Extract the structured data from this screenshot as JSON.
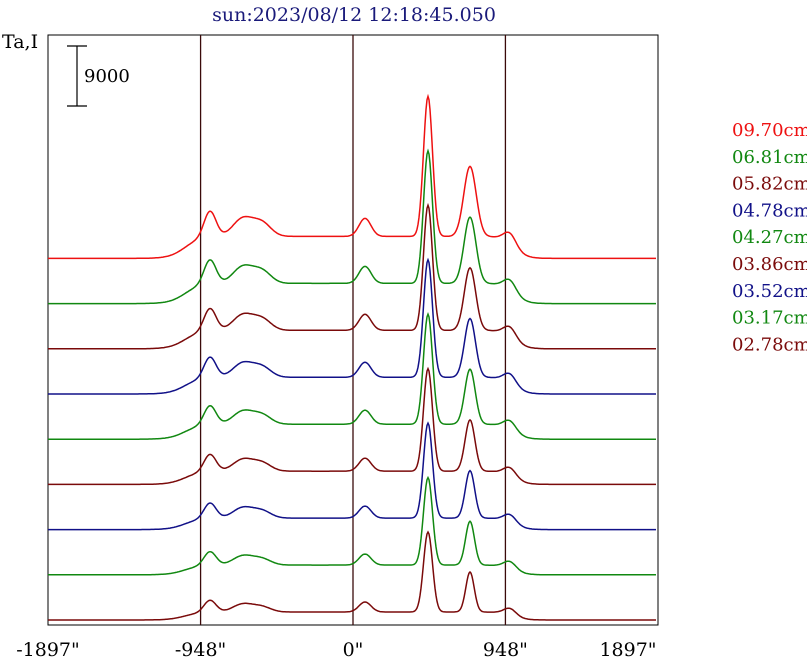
{
  "chart_data": {
    "type": "line",
    "title": "sun:2023/08/12 12:18:45.050",
    "ylabel": "Ta,I",
    "xlim": [
      -1897,
      1897
    ],
    "x_ticks": [
      "-1897\"",
      "-948\"",
      "0\"",
      "948\"",
      "1897\""
    ],
    "x_tick_values": [
      -1897,
      -948,
      0,
      948,
      1897
    ],
    "vertical_lines": [
      -948,
      0,
      948
    ],
    "scale_bar_label": "9000",
    "grid": false,
    "legend_position": "right",
    "series": [
      {
        "name": "09.70cm",
        "color": "#ee1111",
        "rank": 8
      },
      {
        "name": "06.81cm",
        "color": "#118811",
        "rank": 7
      },
      {
        "name": "05.82cm",
        "color": "#7a0a0a",
        "rank": 6
      },
      {
        "name": "04.78cm",
        "color": "#111188",
        "rank": 5
      },
      {
        "name": "04.27cm",
        "color": "#118811",
        "rank": 4
      },
      {
        "name": "03.86cm",
        "color": "#7a0a0a",
        "rank": 3
      },
      {
        "name": "03.52cm",
        "color": "#111188",
        "rank": 2
      },
      {
        "name": "03.17cm",
        "color": "#118811",
        "rank": 1
      },
      {
        "name": "02.78cm",
        "color": "#7a0a0a",
        "rank": 0
      }
    ]
  }
}
